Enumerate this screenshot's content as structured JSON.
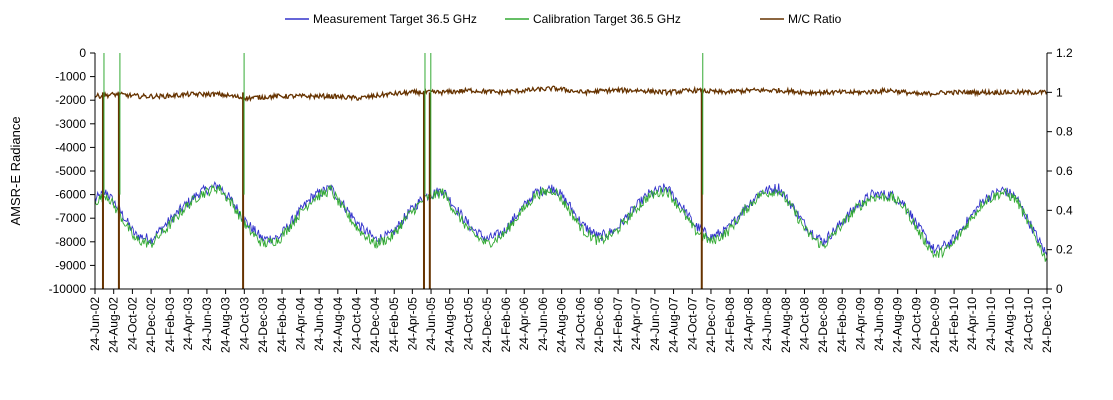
{
  "chart_data": {
    "type": "line",
    "title": "",
    "ylabel": "AMSR-E Radiance",
    "y2label": "",
    "ylim": [
      -10000,
      0
    ],
    "y_ticks": [
      0,
      -1000,
      -2000,
      -3000,
      -4000,
      -5000,
      -6000,
      -7000,
      -8000,
      -9000,
      -10000
    ],
    "y2lim": [
      0,
      1.2
    ],
    "y2_ticks": [
      0,
      0.2,
      0.4,
      0.6,
      0.8,
      1,
      1.2
    ],
    "y2_tick_labels": [
      "0",
      "0.2",
      "0.4",
      "0.6",
      "0.8",
      "1",
      "1.2"
    ],
    "legend_position": "top",
    "grid": false,
    "x_tick_labels": [
      "24-Jun-02",
      "24-Aug-02",
      "24-Oct-02",
      "24-Dec-02",
      "24-Feb-03",
      "24-Apr-03",
      "24-Jun-03",
      "24-Aug-03",
      "24-Oct-03",
      "24-Dec-03",
      "24-Feb-04",
      "24-Apr-04",
      "24-Jun-04",
      "24-Aug-04",
      "24-Oct-04",
      "24-Dec-04",
      "24-Feb-05",
      "24-Apr-05",
      "24-Jun-05",
      "24-Aug-05",
      "24-Oct-05",
      "24-Dec-05",
      "24-Feb-06",
      "24-Apr-06",
      "24-Jun-06",
      "24-Aug-06",
      "24-Oct-06",
      "24-Dec-06",
      "24-Feb-07",
      "24-Apr-07",
      "24-Jun-07",
      "24-Aug-07",
      "24-Oct-07",
      "24-Dec-07",
      "24-Feb-08",
      "24-Apr-08",
      "24-Jun-08",
      "24-Aug-08",
      "24-Oct-08",
      "24-Dec-08",
      "24-Feb-09",
      "24-Apr-09",
      "24-Jun-09",
      "24-Aug-09",
      "24-Oct-09",
      "24-Dec-09",
      "24-Feb-10",
      "24-Apr-10",
      "24-Jun-10",
      "24-Aug-10",
      "24-Oct-10",
      "24-Dec-10"
    ],
    "x_range": [
      "2002-06-24",
      "2010-12-24"
    ],
    "series": [
      {
        "name": "Measurement Target 36.5 GHz",
        "axis": "left",
        "color": "#3333cc",
        "dates": [
          "2002-06-24",
          "2002-08-01",
          "2002-09-15",
          "2002-11-01",
          "2002-12-24",
          "2003-02-15",
          "2003-04-10",
          "2003-06-01",
          "2003-08-01",
          "2003-09-15",
          "2003-11-01",
          "2003-12-24",
          "2004-02-15",
          "2004-04-10",
          "2004-06-01",
          "2004-08-01",
          "2004-09-15",
          "2004-11-01",
          "2004-12-24",
          "2005-02-15",
          "2005-04-10",
          "2005-06-01",
          "2005-08-01",
          "2005-09-15",
          "2005-11-01",
          "2005-12-24",
          "2006-02-15",
          "2006-04-10",
          "2006-06-01",
          "2006-08-01",
          "2006-09-15",
          "2006-11-01",
          "2006-12-24",
          "2007-02-15",
          "2007-04-10",
          "2007-06-01",
          "2007-08-01",
          "2007-09-15",
          "2007-11-01",
          "2007-12-24",
          "2008-02-15",
          "2008-04-10",
          "2008-06-01",
          "2008-08-01",
          "2008-09-15",
          "2008-11-01",
          "2008-12-24",
          "2009-02-15",
          "2009-04-10",
          "2009-06-01",
          "2009-08-01",
          "2009-09-15",
          "2009-11-01",
          "2009-12-24",
          "2010-02-15",
          "2010-04-10",
          "2010-06-01",
          "2010-08-01",
          "2010-09-15",
          "2010-11-01",
          "2010-12-24"
        ],
        "values": [
          -6200,
          -5900,
          -6700,
          -7700,
          -7900,
          -7200,
          -6500,
          -5900,
          -5600,
          -6300,
          -7200,
          -7900,
          -7800,
          -6900,
          -6100,
          -5700,
          -6500,
          -7300,
          -7900,
          -7700,
          -6800,
          -6100,
          -5800,
          -6600,
          -7400,
          -7900,
          -7600,
          -6700,
          -5900,
          -5700,
          -6400,
          -7300,
          -7800,
          -7500,
          -6700,
          -6000,
          -5700,
          -6400,
          -7300,
          -7800,
          -7500,
          -6600,
          -5900,
          -5700,
          -6500,
          -7400,
          -8000,
          -7300,
          -6500,
          -6000,
          -6000,
          -6400,
          -7400,
          -8400,
          -8000,
          -7100,
          -6200,
          -5800,
          -6100,
          -7300,
          -8600
        ]
      },
      {
        "name": "Calibration Target 36.5 GHz",
        "axis": "left",
        "color": "#33aa33",
        "dates": [
          "2002-06-24",
          "2002-08-01",
          "2002-09-15",
          "2002-11-01",
          "2002-12-24",
          "2003-02-15",
          "2003-04-10",
          "2003-06-01",
          "2003-08-01",
          "2003-09-15",
          "2003-11-01",
          "2003-12-24",
          "2004-02-15",
          "2004-04-10",
          "2004-06-01",
          "2004-08-01",
          "2004-09-15",
          "2004-11-01",
          "2004-12-24",
          "2005-02-15",
          "2005-04-10",
          "2005-06-01",
          "2005-08-01",
          "2005-09-15",
          "2005-11-01",
          "2005-12-24",
          "2006-02-15",
          "2006-04-10",
          "2006-06-01",
          "2006-08-01",
          "2006-09-15",
          "2006-11-01",
          "2006-12-24",
          "2007-02-15",
          "2007-04-10",
          "2007-06-01",
          "2007-08-01",
          "2007-09-15",
          "2007-11-01",
          "2007-12-24",
          "2008-02-15",
          "2008-04-10",
          "2008-06-01",
          "2008-08-01",
          "2008-09-15",
          "2008-11-01",
          "2008-12-24",
          "2009-02-15",
          "2009-04-10",
          "2009-06-01",
          "2009-08-01",
          "2009-09-15",
          "2009-11-01",
          "2009-12-24",
          "2010-02-15",
          "2010-04-10",
          "2010-06-01",
          "2010-08-01",
          "2010-09-15",
          "2010-11-01",
          "2010-12-24"
        ],
        "values": [
          -6300,
          -6000,
          -6900,
          -7900,
          -8100,
          -7400,
          -6600,
          -6000,
          -5700,
          -6400,
          -7400,
          -8100,
          -7900,
          -7000,
          -6200,
          -5800,
          -6700,
          -7500,
          -8100,
          -7800,
          -6900,
          -6200,
          -5900,
          -6800,
          -7600,
          -8100,
          -7700,
          -6800,
          -6000,
          -5800,
          -6600,
          -7500,
          -8000,
          -7600,
          -6800,
          -6100,
          -5800,
          -6600,
          -7500,
          -8000,
          -7600,
          -6700,
          -6000,
          -5800,
          -6600,
          -7600,
          -8200,
          -7400,
          -6600,
          -6100,
          -6100,
          -6500,
          -7600,
          -8600,
          -8200,
          -7200,
          -6300,
          -5900,
          -6200,
          -7400,
          -8800
        ]
      },
      {
        "name": "M/C Ratio",
        "axis": "right",
        "color": "#663300",
        "dates": [
          "2002-06-24",
          "2002-09-01",
          "2002-11-15",
          "2003-02-01",
          "2003-05-01",
          "2003-08-01",
          "2003-11-01",
          "2004-02-01",
          "2004-05-01",
          "2004-08-01",
          "2004-11-01",
          "2005-02-01",
          "2005-05-01",
          "2005-08-01",
          "2005-11-01",
          "2006-02-01",
          "2006-05-01",
          "2006-08-01",
          "2006-11-01",
          "2007-02-01",
          "2007-05-01",
          "2007-08-01",
          "2007-11-01",
          "2008-02-01",
          "2008-05-01",
          "2008-08-01",
          "2008-11-01",
          "2009-02-01",
          "2009-05-01",
          "2009-08-01",
          "2009-11-01",
          "2010-02-01",
          "2010-05-01",
          "2010-08-01",
          "2010-11-01",
          "2010-12-24"
        ],
        "values": [
          0.98,
          0.99,
          0.98,
          0.98,
          0.99,
          0.99,
          0.97,
          0.98,
          0.98,
          0.98,
          0.97,
          0.99,
          1.0,
          1.0,
          1.01,
          1.0,
          1.01,
          1.02,
          1.0,
          1.01,
          1.01,
          1.0,
          1.01,
          1.0,
          1.01,
          1.01,
          1.0,
          1.0,
          1.0,
          1.01,
          0.99,
          1.0,
          1.0,
          1.0,
          1.0,
          1.0
        ],
        "dropouts": [
          "2002-07-20",
          "2002-09-10",
          "2003-10-20",
          "2005-06-01",
          "2005-06-20",
          "2007-11-24"
        ]
      }
    ]
  }
}
